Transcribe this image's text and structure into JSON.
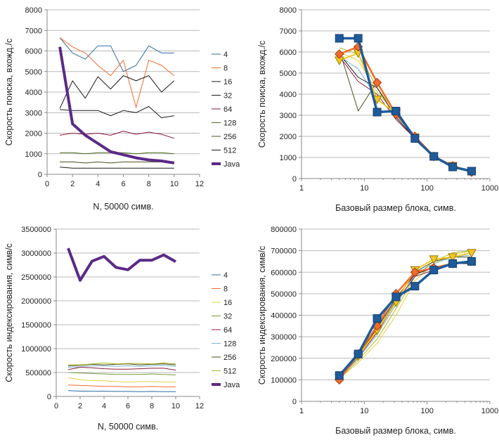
{
  "chart_data": [
    {
      "type": "line",
      "title": "",
      "xlabel": "N, 50000 симв.",
      "ylabel": "Скорость поиска, вхожд./с",
      "xlim": [
        0,
        12
      ],
      "ylim": [
        0,
        8000
      ],
      "xticks": [
        0,
        2,
        4,
        6,
        8,
        10,
        12
      ],
      "yticks": [
        0,
        1000,
        2000,
        3000,
        4000,
        5000,
        6000,
        7000,
        8000
      ],
      "grid": "horizontal",
      "legend": "right",
      "x": [
        1,
        2,
        3,
        4,
        5,
        6,
        7,
        8,
        9,
        10
      ],
      "series": [
        {
          "name": "4",
          "color": "#2e6da4",
          "width": 1,
          "values": [
            6650,
            5900,
            5600,
            6250,
            6250,
            5000,
            5300,
            6250,
            5900,
            5900
          ]
        },
        {
          "name": "8",
          "color": "#f26c2a",
          "width": 1,
          "values": [
            6650,
            6200,
            5900,
            5300,
            4800,
            5550,
            3250,
            5550,
            5300,
            4800
          ]
        },
        {
          "name": "16",
          "color": "#1a1a1a",
          "width": 1,
          "values": [
            3200,
            4550,
            3700,
            4750,
            4150,
            4800,
            4550,
            4800,
            4000,
            4550
          ]
        },
        {
          "name": "32",
          "color": "#1a1a1a",
          "width": 1,
          "values": [
            3150,
            3100,
            3100,
            3100,
            2850,
            3100,
            3000,
            3300,
            2750,
            2850
          ]
        },
        {
          "name": "64",
          "color": "#8b1a3a",
          "width": 1,
          "values": [
            1900,
            2000,
            1950,
            2000,
            1900,
            2100,
            1950,
            2050,
            1950,
            1750
          ]
        },
        {
          "name": "128",
          "color": "#4a6b1e",
          "width": 1,
          "values": [
            1050,
            1050,
            1000,
            1050,
            1050,
            1050,
            1000,
            1050,
            1050,
            1000
          ]
        },
        {
          "name": "256",
          "color": "#4d4d1f",
          "width": 1,
          "values": [
            600,
            600,
            550,
            600,
            550,
            600,
            600,
            600,
            600,
            550
          ]
        },
        {
          "name": "512",
          "color": "#1a1a1a",
          "width": 1,
          "values": [
            350,
            300,
            300,
            300,
            300,
            300,
            300,
            300,
            300,
            300
          ]
        },
        {
          "name": "Java",
          "color": "#5b2a86",
          "width": 4,
          "values": [
            6200,
            2450,
            1900,
            1500,
            1100,
            950,
            800,
            700,
            650,
            550
          ]
        }
      ]
    },
    {
      "type": "line",
      "title": "",
      "xlabel": "Базовый размер блока, симв.",
      "ylabel": "Скорость поиска, вхожд./с",
      "xscale": "log",
      "xlim": [
        1,
        1000
      ],
      "ylim": [
        0,
        8000
      ],
      "xticks": [
        1,
        10,
        100,
        1000
      ],
      "yticks": [
        0,
        1000,
        2000,
        3000,
        4000,
        5000,
        6000,
        7000,
        8000
      ],
      "grid": "horizontal",
      "legend": "none",
      "x": [
        4,
        8,
        16,
        32,
        64,
        128,
        256,
        512
      ],
      "series": [
        {
          "color": "#aab820",
          "width": 1,
          "values": [
            6200,
            5900,
            4300,
            3100,
            1950,
            1050,
            600,
            300
          ]
        },
        {
          "color": "#e8d040",
          "width": 1,
          "values": [
            6000,
            5600,
            4100,
            3050,
            1950,
            1050,
            600,
            300
          ]
        },
        {
          "color": "#7fb3d5",
          "width": 1,
          "values": [
            5800,
            5200,
            3800,
            3000,
            1950,
            1050,
            600,
            300
          ]
        },
        {
          "color": "#4d4d1f",
          "width": 1,
          "values": [
            6100,
            3200,
            4600,
            3000,
            2000,
            1050,
            600,
            300
          ]
        },
        {
          "color": "#1a1a1a",
          "width": 1,
          "values": [
            5900,
            4800,
            4300,
            2900,
            1900,
            1050,
            600,
            300
          ]
        },
        {
          "color": "#8b1a3a",
          "width": 1,
          "values": [
            5800,
            4600,
            4000,
            2800,
            1900,
            1000,
            550,
            300
          ]
        },
        {
          "color": "#f2c81e",
          "width": 2,
          "marker": "triangle-down",
          "values": [
            5600,
            5950,
            3750,
            3100,
            1950,
            1050,
            600,
            350
          ]
        },
        {
          "color": "#f26c2a",
          "width": 2.5,
          "marker": "diamond",
          "values": [
            5900,
            6250,
            4550,
            3050,
            2000,
            1050,
            600,
            300
          ]
        },
        {
          "color": "#1f5b9a",
          "width": 3.5,
          "marker": "square",
          "values": [
            6650,
            6650,
            3150,
            3200,
            1900,
            1050,
            550,
            350
          ]
        }
      ]
    },
    {
      "type": "line",
      "title": "",
      "xlabel": "N, 50000 симв.",
      "ylabel": "Скорость индексирования, симв/с",
      "xlim": [
        0,
        12
      ],
      "ylim": [
        0,
        3500000
      ],
      "xticks": [
        0,
        2,
        4,
        6,
        8,
        10,
        12
      ],
      "yticks": [
        0,
        500000,
        1000000,
        1500000,
        2000000,
        2500000,
        3000000,
        3500000
      ],
      "grid": "horizontal",
      "legend": "right",
      "x": [
        1,
        2,
        3,
        4,
        5,
        6,
        7,
        8,
        9,
        10
      ],
      "series": [
        {
          "name": "4",
          "color": "#2e6da4",
          "width": 1,
          "values": [
            120000,
            110000,
            110000,
            110000,
            105000,
            105000,
            100000,
            105000,
            100000,
            100000
          ]
        },
        {
          "name": "8",
          "color": "#f26c2a",
          "width": 1,
          "values": [
            240000,
            230000,
            220000,
            210000,
            210000,
            200000,
            200000,
            210000,
            200000,
            200000
          ]
        },
        {
          "name": "16",
          "color": "#e8d040",
          "width": 1,
          "values": [
            390000,
            350000,
            330000,
            330000,
            310000,
            300000,
            310000,
            310000,
            300000,
            300000
          ]
        },
        {
          "name": "32",
          "color": "#7a9a3a",
          "width": 1,
          "values": [
            500000,
            490000,
            480000,
            470000,
            460000,
            460000,
            460000,
            470000,
            460000,
            450000
          ]
        },
        {
          "name": "64",
          "color": "#8b1a3a",
          "width": 1,
          "values": [
            560000,
            610000,
            600000,
            580000,
            570000,
            570000,
            580000,
            590000,
            590000,
            550000
          ]
        },
        {
          "name": "128",
          "color": "#7fb3d5",
          "width": 1,
          "values": [
            610000,
            620000,
            640000,
            640000,
            630000,
            640000,
            630000,
            640000,
            650000,
            630000
          ]
        },
        {
          "name": "256",
          "color": "#4d4d1f",
          "width": 1,
          "values": [
            640000,
            650000,
            670000,
            660000,
            670000,
            680000,
            660000,
            670000,
            680000,
            660000
          ]
        },
        {
          "name": "512",
          "color": "#aab820",
          "width": 1,
          "values": [
            660000,
            660000,
            680000,
            700000,
            680000,
            690000,
            690000,
            680000,
            700000,
            680000
          ]
        },
        {
          "name": "Java",
          "color": "#5b2a86",
          "width": 4,
          "values": [
            3100000,
            2430000,
            2830000,
            2930000,
            2700000,
            2650000,
            2850000,
            2850000,
            2960000,
            2820000
          ]
        }
      ]
    },
    {
      "type": "line",
      "title": "",
      "xlabel": "Базовый размер блока, симв.",
      "ylabel": "Скорость индексирования, симв/с",
      "xscale": "log",
      "xlim": [
        1,
        1000
      ],
      "ylim": [
        0,
        800000
      ],
      "xticks": [
        1,
        10,
        100,
        1000
      ],
      "yticks": [
        0,
        100000,
        200000,
        300000,
        400000,
        500000,
        600000,
        700000,
        800000
      ],
      "grid": "horizontal",
      "legend": "none",
      "x": [
        4,
        8,
        16,
        32,
        64,
        128,
        256,
        512
      ],
      "series": [
        {
          "color": "#e8d040",
          "width": 1,
          "values": [
            105000,
            180000,
            270000,
            400000,
            560000,
            640000,
            680000,
            700000
          ]
        },
        {
          "color": "#aab820",
          "width": 1,
          "values": [
            105000,
            190000,
            290000,
            430000,
            580000,
            650000,
            690000,
            700000
          ]
        },
        {
          "color": "#7fb3d5",
          "width": 1,
          "values": [
            110000,
            200000,
            310000,
            450000,
            590000,
            640000,
            670000,
            680000
          ]
        },
        {
          "color": "#4d4d1f",
          "width": 1,
          "values": [
            110000,
            210000,
            330000,
            470000,
            600000,
            650000,
            670000,
            670000
          ]
        },
        {
          "color": "#8b1a3a",
          "width": 1,
          "values": [
            105000,
            205000,
            320000,
            460000,
            580000,
            610000,
            640000,
            640000
          ]
        },
        {
          "color": "#1a1a1a",
          "width": 1,
          "values": [
            110000,
            215000,
            340000,
            480000,
            590000,
            620000,
            640000,
            640000
          ]
        },
        {
          "color": "#f2c81e",
          "width": 2,
          "marker": "triangle-down",
          "values": [
            110000,
            210000,
            330000,
            460000,
            610000,
            660000,
            670000,
            690000
          ]
        },
        {
          "color": "#f26c2a",
          "width": 2.5,
          "marker": "diamond",
          "values": [
            100000,
            220000,
            350000,
            500000,
            600000,
            620000,
            640000,
            650000
          ]
        },
        {
          "color": "#1f5b9a",
          "width": 3.5,
          "marker": "square",
          "values": [
            120000,
            220000,
            385000,
            485000,
            535000,
            610000,
            640000,
            650000
          ]
        }
      ]
    }
  ]
}
